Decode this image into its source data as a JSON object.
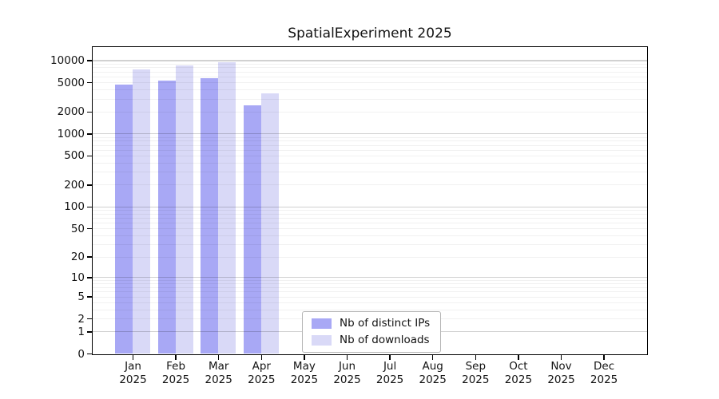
{
  "chart_data": {
    "type": "bar",
    "title": "SpatialExperiment 2025",
    "categories": [
      "Jan 2025",
      "Feb 2025",
      "Mar 2025",
      "Apr 2025",
      "May 2025",
      "Jun 2025",
      "Jul 2025",
      "Aug 2025",
      "Sep 2025",
      "Oct 2025",
      "Nov 2025",
      "Dec 2025"
    ],
    "series": [
      {
        "name": "Nb of distinct IPs",
        "color": "#a8a8f5",
        "values": [
          4700,
          5300,
          5700,
          2450,
          null,
          null,
          null,
          null,
          null,
          null,
          null,
          null
        ]
      },
      {
        "name": "Nb of downloads",
        "color": "#d9d9f7",
        "values": [
          7500,
          8600,
          9500,
          3550,
          null,
          null,
          null,
          null,
          null,
          null,
          null,
          null
        ]
      }
    ],
    "y_axis": {
      "scale": "log1p",
      "max": 10000,
      "tick_values": [
        0,
        1,
        2,
        5,
        10,
        20,
        50,
        100,
        200,
        500,
        1000,
        2000,
        5000,
        10000
      ],
      "tick_labels": [
        "0",
        "1",
        "2",
        "5",
        "10",
        "20",
        "50",
        "100",
        "200",
        "500",
        "1000",
        "2000",
        "5000",
        "10000"
      ],
      "major_gridlines": [
        1,
        10,
        100,
        1000,
        10000
      ],
      "grid": "horizontal minor + major, drawn over bars"
    },
    "x_axis": {
      "tick_per_category": true,
      "label_lines": 2
    },
    "legend_position": "inside plot, lower center"
  }
}
